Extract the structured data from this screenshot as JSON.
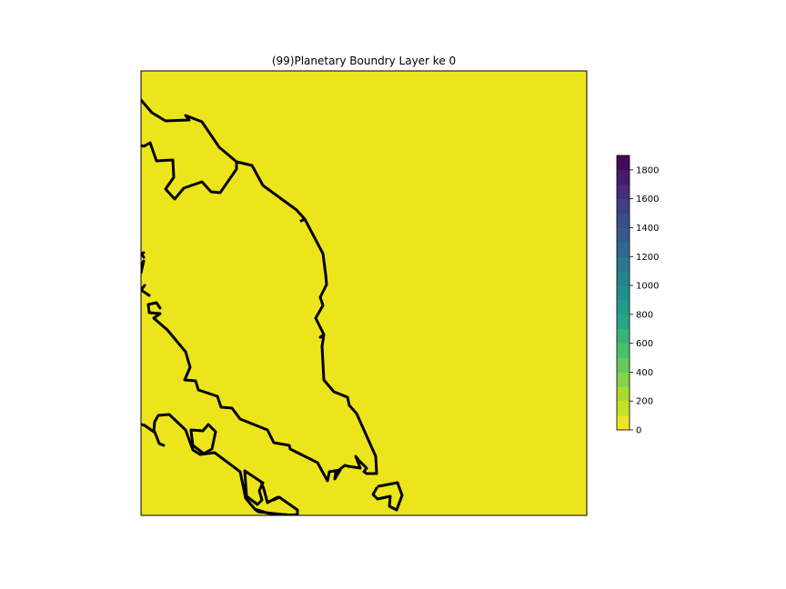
{
  "title": "(99)Planetary Boundry Layer ke 0",
  "colorbar": {
    "min": 0,
    "max": 1900,
    "step": 100,
    "tick_values": [
      0,
      200,
      400,
      600,
      800,
      1000,
      1200,
      1400,
      1600,
      1800
    ],
    "tick_labels": [
      "0",
      "200",
      "400",
      "600",
      "800",
      "1000",
      "1200",
      "1400",
      "1600",
      "1800"
    ],
    "colormap": "viridis_r"
  },
  "field": {
    "value": 0,
    "fill_color": "#ece51b"
  },
  "colors": {
    "coastline": "#000000",
    "frame": "#000000"
  }
}
